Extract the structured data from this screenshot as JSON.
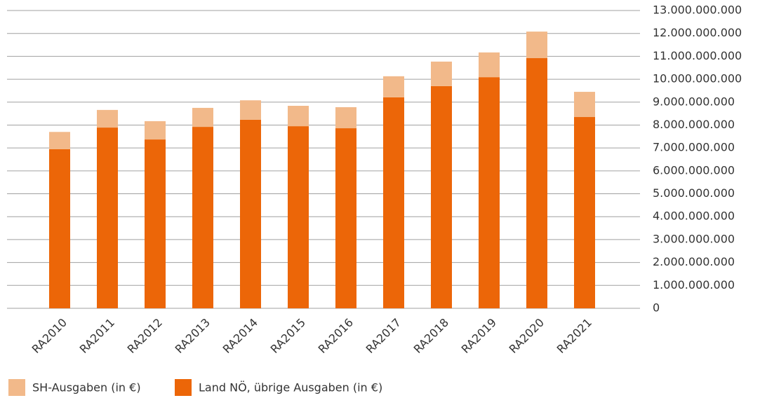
{
  "chart_data": {
    "type": "stacked_bar",
    "categories": [
      "RA2010",
      "RA2011",
      "RA2012",
      "RA2013",
      "RA2014",
      "RA2015",
      "RA2016",
      "RA2017",
      "RA2018",
      "RA2019",
      "RA2020",
      "RA2021"
    ],
    "series": [
      {
        "name": "SH-Ausgaben (in €)",
        "color": "#f2b98a",
        "values": [
          750000000,
          770000000,
          800000000,
          830000000,
          850000000,
          890000000,
          920000000,
          920000000,
          1070000000,
          1080000000,
          1160000000,
          1100000000
        ]
      },
      {
        "name": "Land NÖ, übrige Ausgaben (in €)",
        "color": "#ec6608",
        "values": [
          6950000000,
          7890000000,
          7370000000,
          7920000000,
          8230000000,
          7950000000,
          7860000000,
          9210000000,
          9700000000,
          10090000000,
          10920000000,
          8350000000
        ]
      }
    ],
    "ylim": [
      0,
      13000000000
    ],
    "yticks": [
      0,
      {
        "value": 1000000000,
        "label": "1.000.000.000"
      },
      {
        "value": 2000000000,
        "label": "2.000.000.000"
      },
      {
        "value": 3000000000,
        "label": "3.000.000.000"
      },
      {
        "value": 4000000000,
        "label": "4.000.000.000"
      },
      {
        "value": 5000000000,
        "label": "5.000.000.000"
      },
      {
        "value": 6000000000,
        "label": "6.000.000.000"
      },
      {
        "value": 7000000000,
        "label": "7.000.000.000"
      },
      {
        "value": 8000000000,
        "label": "8.000.000.000"
      },
      {
        "value": 9000000000,
        "label": "9.000.000.000"
      },
      {
        "value": 10000000000,
        "label": "10.000.000.000"
      },
      {
        "value": 11000000000,
        "label": "11.000.000.000"
      },
      {
        "value": 12000000000,
        "label": "12.000.000.000"
      },
      {
        "value": 13000000000,
        "label": "13.000.000.000"
      }
    ],
    "grid": true,
    "legend": "bottom-left"
  }
}
